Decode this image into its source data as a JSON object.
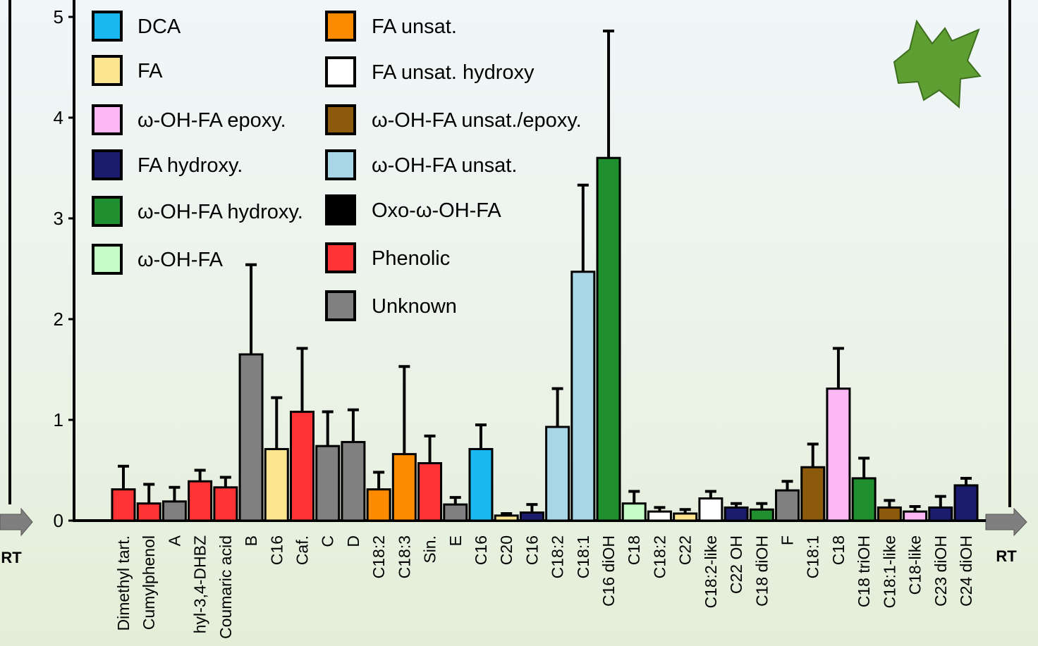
{
  "chart_data": {
    "type": "bar",
    "categories": [
      "Dimethyl tart.",
      "Cumylphenol",
      "A",
      "hyl-3,4-DHBZ",
      "Coumaric acid",
      "B",
      "C16",
      "Caf.",
      "C",
      "D",
      "C18:2",
      "C18:3",
      "Sin.",
      "E",
      "C16",
      "C20",
      "C16",
      "C18:2",
      "C18:1",
      "C16 diOH",
      "C18",
      "C18:2",
      "C22",
      "C18:2-like",
      "C22 OH",
      "C18 diOH",
      "F",
      "C18:1",
      "C18",
      "C18 triOH",
      "C18:1-like",
      "C18-like",
      "C23 diOH",
      "C24 diOH"
    ],
    "values": [
      0.31,
      0.17,
      0.19,
      0.39,
      0.33,
      1.65,
      0.71,
      1.08,
      0.74,
      0.78,
      0.31,
      0.66,
      0.57,
      0.16,
      0.71,
      0.05,
      0.08,
      0.93,
      2.47,
      3.6,
      0.17,
      0.09,
      0.07,
      0.22,
      0.13,
      0.11,
      0.3,
      0.53,
      1.31,
      0.42,
      0.13,
      0.09,
      0.13,
      0.35
    ],
    "errors": [
      0.23,
      0.19,
      0.14,
      0.11,
      0.1,
      0.89,
      0.51,
      0.63,
      0.34,
      0.32,
      0.17,
      0.87,
      0.27,
      0.07,
      0.24,
      0.02,
      0.08,
      0.38,
      0.86,
      1.26,
      0.12,
      0.04,
      0.04,
      0.07,
      0.04,
      0.06,
      0.09,
      0.23,
      0.4,
      0.2,
      0.07,
      0.05,
      0.11,
      0.07
    ],
    "colors": [
      "#ff3333",
      "#ff3333",
      "#808080",
      "#ff3333",
      "#ff3333",
      "#808080",
      "#fde58f",
      "#ff3333",
      "#808080",
      "#808080",
      "#ff8c00",
      "#ff8c00",
      "#ff3333",
      "#808080",
      "#1ab8f0",
      "#fde58f",
      "#1c1c6e",
      "#a9d6e6",
      "#a9d6e6",
      "#1f8f2f",
      "#c6fcc8",
      "#ffffff",
      "#fde58f",
      "#ffffff",
      "#1c1c6e",
      "#1f8f2f",
      "#808080",
      "#8b5a0b",
      "#fbb8f5",
      "#1f8f2f",
      "#8b5a0b",
      "#fbb8f5",
      "#1c1c6e",
      "#1c1c6e"
    ],
    "legend": [
      {
        "name": "DCA",
        "color": "#1ab8f0"
      },
      {
        "name": "FA",
        "color": "#fde58f"
      },
      {
        "name": "ω-OH-FA epoxy.",
        "color": "#fbb8f5"
      },
      {
        "name": "FA hydroxy.",
        "color": "#1c1c6e"
      },
      {
        "name": "ω-OH-FA hydroxy.",
        "color": "#1f8f2f"
      },
      {
        "name": "ω-OH-FA",
        "color": "#c6fcc8"
      },
      {
        "name": "FA unsat.",
        "color": "#ff8c00"
      },
      {
        "name": "FA unsat. hydroxy",
        "color": "#ffffff"
      },
      {
        "name": "ω-OH-FA unsat./epoxy.",
        "color": "#8b5a0b"
      },
      {
        "name": "ω-OH-FA unsat.",
        "color": "#a9d6e6"
      },
      {
        "name": "Oxo-ω-OH-FA",
        "color": "#000000"
      },
      {
        "name": "Phenolic",
        "color": "#ff3333"
      },
      {
        "name": "Unknown",
        "color": "#808080"
      }
    ],
    "axis_end_labels": [
      "RT",
      "RT"
    ],
    "ylim": [
      0,
      5
    ],
    "yticks": [
      0,
      1,
      2,
      3,
      4,
      5
    ]
  }
}
